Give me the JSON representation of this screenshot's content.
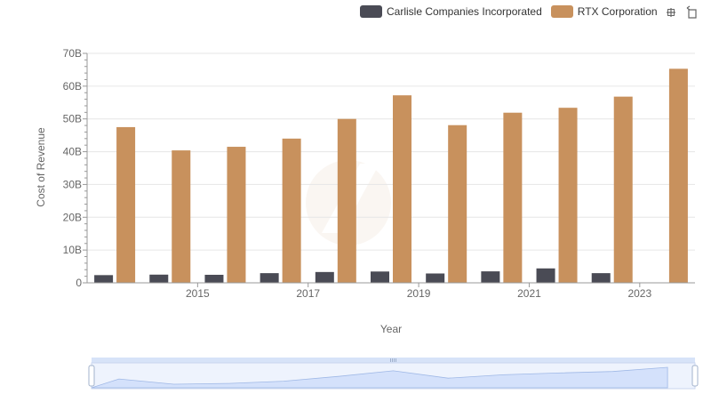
{
  "legend": [
    {
      "name": "Carlisle Companies Incorporated",
      "color": "#4a4b55"
    },
    {
      "name": "RTX Corporation",
      "color": "#c8915d"
    }
  ],
  "toolbar": [
    {
      "icon": "zoom-icon"
    },
    {
      "icon": "zoom-reset-icon"
    }
  ],
  "chart_data": {
    "type": "bar",
    "x": [
      2014,
      2015,
      2016,
      2017,
      2018,
      2019,
      2020,
      2021,
      2022,
      2023,
      2024
    ],
    "xticks": [
      "2015",
      "2017",
      "2019",
      "2021",
      "2023"
    ],
    "xlabel": "Year",
    "ylabel": "Cost of Revenue",
    "ylim": [
      0,
      70000000000
    ],
    "yticks": [
      "0",
      "10B",
      "20B",
      "30B",
      "40B",
      "50B",
      "60B",
      "70B"
    ],
    "grid": true,
    "legend_position": "top-right",
    "series": [
      {
        "name": "Carlisle Companies Incorporated",
        "color": "#4a4b55",
        "values": [
          2350000000,
          2500000000,
          2450000000,
          2950000000,
          3300000000,
          3450000000,
          2850000000,
          3500000000,
          4400000000,
          2950000000,
          null
        ]
      },
      {
        "name": "RTX Corporation",
        "color": "#c8915d",
        "values": [
          47500000000,
          40400000000,
          41500000000,
          44000000000,
          50000000000,
          57200000000,
          48100000000,
          51900000000,
          53400000000,
          56800000000,
          65300000000
        ]
      }
    ]
  }
}
